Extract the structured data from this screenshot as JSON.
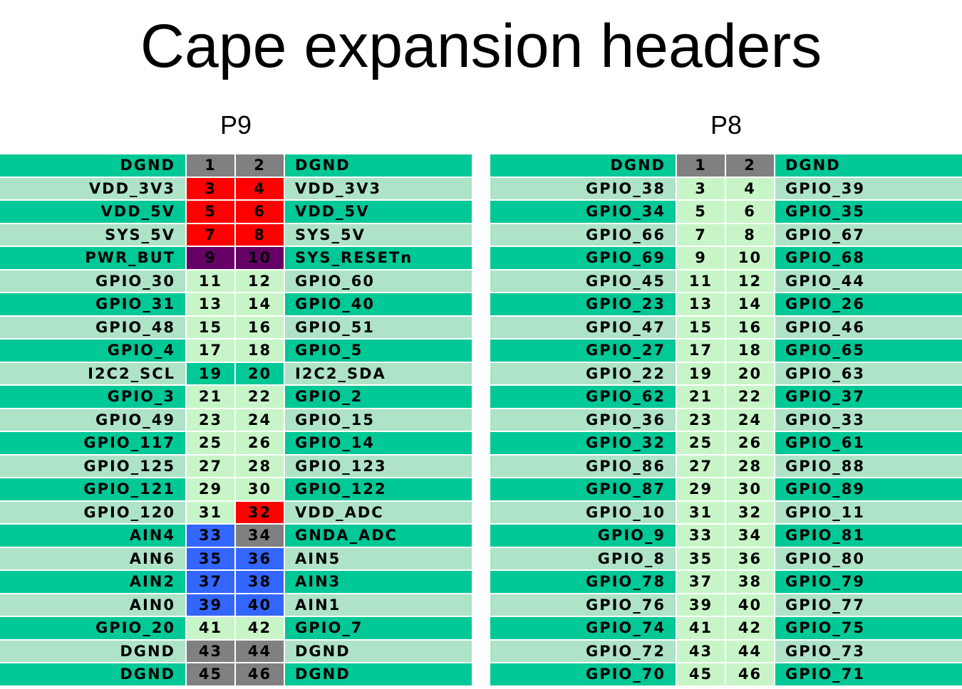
{
  "title": "Cape expansion headers",
  "headers": [
    {
      "id": "p9",
      "label": "P9",
      "rows": [
        {
          "left": "DGND",
          "p1": "1",
          "p2": "2",
          "right": "DGND",
          "c1": "gray",
          "c2": "gray"
        },
        {
          "left": "VDD_3V3",
          "p1": "3",
          "p2": "4",
          "right": "VDD_3V3",
          "c1": "red",
          "c2": "red"
        },
        {
          "left": "VDD_5V",
          "p1": "5",
          "p2": "6",
          "right": "VDD_5V",
          "c1": "red",
          "c2": "red"
        },
        {
          "left": "SYS_5V",
          "p1": "7",
          "p2": "8",
          "right": "SYS_5V",
          "c1": "red",
          "c2": "red"
        },
        {
          "left": "PWR_BUT",
          "p1": "9",
          "p2": "10",
          "right": "SYS_RESETn",
          "c1": "purple",
          "c2": "purple"
        },
        {
          "left": "GPIO_30",
          "p1": "11",
          "p2": "12",
          "right": "GPIO_60",
          "c1": "",
          "c2": ""
        },
        {
          "left": "GPIO_31",
          "p1": "13",
          "p2": "14",
          "right": "GPIO_40",
          "c1": "",
          "c2": ""
        },
        {
          "left": "GPIO_48",
          "p1": "15",
          "p2": "16",
          "right": "GPIO_51",
          "c1": "",
          "c2": ""
        },
        {
          "left": "GPIO_4",
          "p1": "17",
          "p2": "18",
          "right": "GPIO_5",
          "c1": "",
          "c2": ""
        },
        {
          "left": "I2C2_SCL",
          "p1": "19",
          "p2": "20",
          "right": "I2C2_SDA",
          "c1": "teal",
          "c2": "teal"
        },
        {
          "left": "GPIO_3",
          "p1": "21",
          "p2": "22",
          "right": "GPIO_2",
          "c1": "",
          "c2": ""
        },
        {
          "left": "GPIO_49",
          "p1": "23",
          "p2": "24",
          "right": "GPIO_15",
          "c1": "",
          "c2": ""
        },
        {
          "left": "GPIO_117",
          "p1": "25",
          "p2": "26",
          "right": "GPIO_14",
          "c1": "",
          "c2": ""
        },
        {
          "left": "GPIO_125",
          "p1": "27",
          "p2": "28",
          "right": "GPIO_123",
          "c1": "",
          "c2": ""
        },
        {
          "left": "GPIO_121",
          "p1": "29",
          "p2": "30",
          "right": "GPIO_122",
          "c1": "",
          "c2": ""
        },
        {
          "left": "GPIO_120",
          "p1": "31",
          "p2": "32",
          "right": "VDD_ADC",
          "c1": "",
          "c2": "red"
        },
        {
          "left": "AIN4",
          "p1": "33",
          "p2": "34",
          "right": "GNDA_ADC",
          "c1": "blue",
          "c2": "gray"
        },
        {
          "left": "AIN6",
          "p1": "35",
          "p2": "36",
          "right": "AIN5",
          "c1": "blue",
          "c2": "blue"
        },
        {
          "left": "AIN2",
          "p1": "37",
          "p2": "38",
          "right": "AIN3",
          "c1": "blue",
          "c2": "blue"
        },
        {
          "left": "AIN0",
          "p1": "39",
          "p2": "40",
          "right": "AIN1",
          "c1": "blue",
          "c2": "blue"
        },
        {
          "left": "GPIO_20",
          "p1": "41",
          "p2": "42",
          "right": "GPIO_7",
          "c1": "",
          "c2": ""
        },
        {
          "left": "DGND",
          "p1": "43",
          "p2": "44",
          "right": "DGND",
          "c1": "gray",
          "c2": "gray"
        },
        {
          "left": "DGND",
          "p1": "45",
          "p2": "46",
          "right": "DGND",
          "c1": "gray",
          "c2": "gray"
        }
      ]
    },
    {
      "id": "p8",
      "label": "P8",
      "rows": [
        {
          "left": "DGND",
          "p1": "1",
          "p2": "2",
          "right": "DGND",
          "c1": "gray",
          "c2": "gray"
        },
        {
          "left": "GPIO_38",
          "p1": "3",
          "p2": "4",
          "right": "GPIO_39",
          "c1": "",
          "c2": ""
        },
        {
          "left": "GPIO_34",
          "p1": "5",
          "p2": "6",
          "right": "GPIO_35",
          "c1": "",
          "c2": ""
        },
        {
          "left": "GPIO_66",
          "p1": "7",
          "p2": "8",
          "right": "GPIO_67",
          "c1": "",
          "c2": ""
        },
        {
          "left": "GPIO_69",
          "p1": "9",
          "p2": "10",
          "right": "GPIO_68",
          "c1": "",
          "c2": ""
        },
        {
          "left": "GPIO_45",
          "p1": "11",
          "p2": "12",
          "right": "GPIO_44",
          "c1": "",
          "c2": ""
        },
        {
          "left": "GPIO_23",
          "p1": "13",
          "p2": "14",
          "right": "GPIO_26",
          "c1": "",
          "c2": ""
        },
        {
          "left": "GPIO_47",
          "p1": "15",
          "p2": "16",
          "right": "GPIO_46",
          "c1": "",
          "c2": ""
        },
        {
          "left": "GPIO_27",
          "p1": "17",
          "p2": "18",
          "right": "GPIO_65",
          "c1": "",
          "c2": ""
        },
        {
          "left": "GPIO_22",
          "p1": "19",
          "p2": "20",
          "right": "GPIO_63",
          "c1": "",
          "c2": ""
        },
        {
          "left": "GPIO_62",
          "p1": "21",
          "p2": "22",
          "right": "GPIO_37",
          "c1": "",
          "c2": ""
        },
        {
          "left": "GPIO_36",
          "p1": "23",
          "p2": "24",
          "right": "GPIO_33",
          "c1": "",
          "c2": ""
        },
        {
          "left": "GPIO_32",
          "p1": "25",
          "p2": "26",
          "right": "GPIO_61",
          "c1": "",
          "c2": ""
        },
        {
          "left": "GPIO_86",
          "p1": "27",
          "p2": "28",
          "right": "GPIO_88",
          "c1": "",
          "c2": ""
        },
        {
          "left": "GPIO_87",
          "p1": "29",
          "p2": "30",
          "right": "GPIO_89",
          "c1": "",
          "c2": ""
        },
        {
          "left": "GPIO_10",
          "p1": "31",
          "p2": "32",
          "right": "GPIO_11",
          "c1": "",
          "c2": ""
        },
        {
          "left": "GPIO_9",
          "p1": "33",
          "p2": "34",
          "right": "GPIO_81",
          "c1": "",
          "c2": ""
        },
        {
          "left": "GPIO_8",
          "p1": "35",
          "p2": "36",
          "right": "GPIO_80",
          "c1": "",
          "c2": ""
        },
        {
          "left": "GPIO_78",
          "p1": "37",
          "p2": "38",
          "right": "GPIO_79",
          "c1": "",
          "c2": ""
        },
        {
          "left": "GPIO_76",
          "p1": "39",
          "p2": "40",
          "right": "GPIO_77",
          "c1": "",
          "c2": ""
        },
        {
          "left": "GPIO_74",
          "p1": "41",
          "p2": "42",
          "right": "GPIO_75",
          "c1": "",
          "c2": ""
        },
        {
          "left": "GPIO_72",
          "p1": "43",
          "p2": "44",
          "right": "GPIO_73",
          "c1": "",
          "c2": ""
        },
        {
          "left": "GPIO_70",
          "p1": "45",
          "p2": "46",
          "right": "GPIO_71",
          "c1": "",
          "c2": ""
        }
      ]
    }
  ],
  "colors": {
    "row_dark": "#00c896",
    "row_light": "#aee3c8",
    "pin_default": "#c8f5c8",
    "gray": "#808080",
    "red": "#ff0000",
    "purple": "#660066",
    "blue": "#3366ff",
    "teal": "#00c896"
  }
}
